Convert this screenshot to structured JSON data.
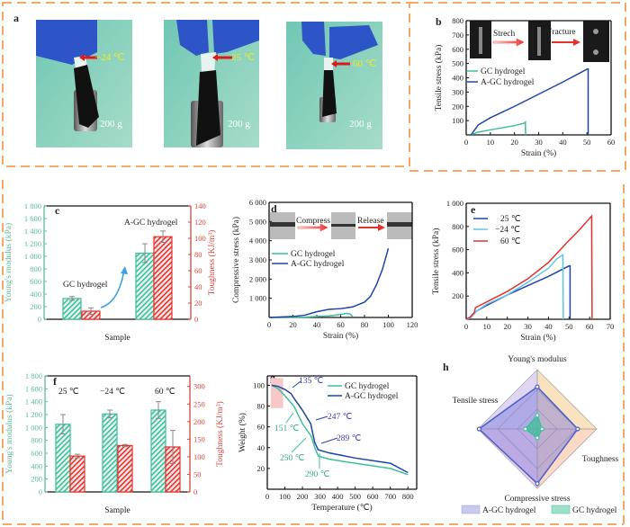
{
  "panel_labels": {
    "a": "a",
    "b": "b",
    "c": "c",
    "d": "d",
    "e": "e",
    "f": "f",
    "g": "g",
    "h": "h"
  },
  "panel_a": {
    "photos": [
      {
        "temp": "−24 ℃",
        "weight": "200 g"
      },
      {
        "temp": "25 ℃",
        "weight": "200 g"
      },
      {
        "temp": "60 ℃",
        "weight": "200 g"
      }
    ]
  },
  "colors": {
    "gc": "#3cbf9b",
    "agc": "#1f43a8",
    "light_blue": "#5cc6ea",
    "red": "#e8302a",
    "border": "#f6a766"
  },
  "chart_data": [
    {
      "id": "b",
      "type": "line",
      "xlabel": "Strain (%)",
      "ylabel": "Tensile stress (kPa)",
      "xlim": [
        0,
        60
      ],
      "ylim": [
        0,
        800
      ],
      "xticks": [
        0,
        10,
        20,
        30,
        40,
        50,
        60
      ],
      "yticks": [
        100,
        200,
        300,
        400,
        500,
        600,
        700,
        800
      ],
      "inset_steps": [
        "Strech",
        "Fracture"
      ],
      "series": [
        {
          "name": "GC hydrogel",
          "color": "#3cbf9b",
          "points": [
            [
              2,
              0
            ],
            [
              5,
              20
            ],
            [
              10,
              35
            ],
            [
              15,
              50
            ],
            [
              20,
              65
            ],
            [
              24,
              82
            ],
            [
              24.5,
              90
            ],
            [
              24.6,
              0
            ]
          ]
        },
        {
          "name": "A-GC hydrogel",
          "color": "#1f43a8",
          "points": [
            [
              2,
              0
            ],
            [
              5,
              70
            ],
            [
              10,
              120
            ],
            [
              20,
              200
            ],
            [
              30,
              285
            ],
            [
              40,
              370
            ],
            [
              50,
              460
            ],
            [
              50.5,
              462
            ],
            [
              50.5,
              0
            ]
          ]
        }
      ]
    },
    {
      "id": "c",
      "type": "bar",
      "xlabel": "Sample",
      "ylabel": "Young's modulus (kPa)",
      "y2label": "Toughness (KJ/m³)",
      "ylim": [
        0,
        1800
      ],
      "y2lim": [
        0,
        140
      ],
      "yticks": [
        0,
        200,
        400,
        600,
        800,
        1000,
        1200,
        1400,
        1600,
        1800
      ],
      "y2ticks": [
        0,
        20,
        40,
        60,
        80,
        100,
        120,
        140
      ],
      "categories": [
        "GC hydrogel",
        "A-GC hydrogel"
      ],
      "series": [
        {
          "name": "Young's modulus",
          "axis": "left",
          "color": "#3cbf9b",
          "values": [
            330,
            1050
          ],
          "errors": [
            30,
            150
          ]
        },
        {
          "name": "Toughness",
          "axis": "right",
          "color": "#e8302a",
          "values": [
            10,
            102
          ],
          "errors": [
            4,
            7
          ]
        }
      ]
    },
    {
      "id": "d",
      "type": "line",
      "xlabel": "Strain (%)",
      "ylabel": "Compressive stress (kPa)",
      "xlim": [
        0,
        120
      ],
      "ylim": [
        0,
        6000
      ],
      "xticks": [
        0,
        20,
        40,
        60,
        80,
        100,
        120
      ],
      "yticks": [
        1000,
        2000,
        3000,
        4000,
        5000,
        6000
      ],
      "inset_steps": [
        "Compress",
        "Release"
      ],
      "series": [
        {
          "name": "GC hydrogel",
          "color": "#3cbf9b",
          "points": [
            [
              0,
              0
            ],
            [
              30,
              20
            ],
            [
              50,
              80
            ],
            [
              60,
              150
            ],
            [
              65,
              210
            ],
            [
              68,
              180
            ],
            [
              70,
              50
            ]
          ]
        },
        {
          "name": "A-GC hydrogel",
          "color": "#1f43a8",
          "points": [
            [
              0,
              0
            ],
            [
              20,
              50
            ],
            [
              30,
              120
            ],
            [
              40,
              300
            ],
            [
              50,
              420
            ],
            [
              60,
              460
            ],
            [
              70,
              550
            ],
            [
              80,
              800
            ],
            [
              85,
              1100
            ],
            [
              90,
              1700
            ],
            [
              95,
              2500
            ],
            [
              100,
              3600
            ]
          ]
        }
      ]
    },
    {
      "id": "e",
      "type": "line",
      "xlabel": "Strain (%)",
      "ylabel": "Tensile stress (kPa)",
      "xlim": [
        0,
        70
      ],
      "ylim": [
        0,
        1000
      ],
      "xticks": [
        0,
        10,
        20,
        30,
        40,
        50,
        60,
        70
      ],
      "yticks": [
        200,
        400,
        600,
        800,
        1000
      ],
      "series": [
        {
          "name": "25 ℃",
          "color": "#1f43a8",
          "points": [
            [
              0,
              0
            ],
            [
              2,
              10
            ],
            [
              4,
              50
            ],
            [
              5,
              70
            ],
            [
              10,
              120
            ],
            [
              20,
              210
            ],
            [
              30,
              290
            ],
            [
              40,
              370
            ],
            [
              50,
              460
            ],
            [
              50.5,
              460
            ],
            [
              50.5,
              0
            ]
          ]
        },
        {
          "name": "−24 ℃",
          "color": "#5cc6ea",
          "points": [
            [
              0,
              0
            ],
            [
              2,
              10
            ],
            [
              4,
              50
            ],
            [
              5,
              70
            ],
            [
              10,
              130
            ],
            [
              20,
              210
            ],
            [
              30,
              320
            ],
            [
              40,
              440
            ],
            [
              44,
              520
            ],
            [
              47,
              555
            ],
            [
              47.2,
              0
            ]
          ]
        },
        {
          "name": "60 ℃",
          "color": "#e8302a",
          "points": [
            [
              0,
              0
            ],
            [
              2,
              20
            ],
            [
              4,
              60
            ],
            [
              4.5,
              100
            ],
            [
              10,
              150
            ],
            [
              20,
              240
            ],
            [
              30,
              350
            ],
            [
              40,
              490
            ],
            [
              50,
              680
            ],
            [
              55,
              770
            ],
            [
              61,
              890
            ],
            [
              61.2,
              0
            ]
          ]
        }
      ]
    },
    {
      "id": "f",
      "type": "bar",
      "xlabel": "Sample",
      "ylabel": "Young's modulus (kPa)",
      "y2label": "Toughness (KJ/m³)",
      "ylim": [
        0,
        1800
      ],
      "y2lim": [
        0,
        330
      ],
      "yticks": [
        0,
        200,
        400,
        600,
        800,
        1000,
        1200,
        1400,
        1600,
        1800
      ],
      "y2ticks": [
        0,
        50,
        100,
        150,
        200,
        250,
        300
      ],
      "categories": [
        "25 ℃",
        "−24 ℃",
        "60 ℃"
      ],
      "series": [
        {
          "name": "Young's modulus",
          "axis": "left",
          "color": "#3cbf9b",
          "values": [
            1050,
            1210,
            1270
          ],
          "errors": [
            150,
            60,
            130
          ]
        },
        {
          "name": "Toughness",
          "axis": "right",
          "color": "#e8302a",
          "values": [
            102,
            132,
            128
          ],
          "errors": [
            5,
            3,
            47
          ]
        }
      ]
    },
    {
      "id": "g",
      "type": "line",
      "xlabel": "Temperature (℃)",
      "ylabel": "Weight (%)",
      "xlim": [
        0,
        850
      ],
      "ylim": [
        0,
        109
      ],
      "xticks": [
        0,
        100,
        200,
        300,
        400,
        500,
        600,
        700,
        800
      ],
      "yticks": [
        20,
        40,
        60,
        80,
        100
      ],
      "highlight": {
        "x": [
          20,
          90
        ],
        "y": [
          78,
          107
        ]
      },
      "annotations": [
        "135 ℃",
        "247 ℃",
        "289 ℃",
        "151 ℃",
        "250 ℃",
        "290 ℃"
      ],
      "series": [
        {
          "name": "GC hydrogel",
          "color": "#3cbf9b",
          "points": [
            [
              25,
              100
            ],
            [
              60,
              97
            ],
            [
              100,
              90
            ],
            [
              151,
              80
            ],
            [
              200,
              63
            ],
            [
              250,
              51
            ],
            [
              270,
              40
            ],
            [
              290,
              32
            ],
            [
              350,
              29
            ],
            [
              500,
              25
            ],
            [
              700,
              20
            ],
            [
              800,
              14
            ]
          ]
        },
        {
          "name": "A-GC hydrogel",
          "color": "#1f43a8",
          "points": [
            [
              25,
              100
            ],
            [
              60,
              99
            ],
            [
              100,
              96
            ],
            [
              135,
              92
            ],
            [
              150,
              88
            ],
            [
              200,
              76
            ],
            [
              247,
              63
            ],
            [
              270,
              45
            ],
            [
              289,
              38
            ],
            [
              350,
              35
            ],
            [
              500,
              30
            ],
            [
              700,
              25
            ],
            [
              800,
              16
            ]
          ]
        }
      ]
    },
    {
      "id": "h",
      "type": "radar",
      "axes": [
        "Young's modulus",
        "Toughness",
        "Compressive stress",
        "Tensile stress"
      ],
      "series": [
        {
          "name": "A-GC hydrogel",
          "color": "#4a5fcc",
          "values": [
            0.71,
            0.68,
            0.92,
            0.98
          ]
        },
        {
          "name": "GC hydrogel",
          "color": "#3cbf9b",
          "values": [
            0.23,
            0.08,
            0.15,
            0.2
          ]
        }
      ]
    }
  ]
}
